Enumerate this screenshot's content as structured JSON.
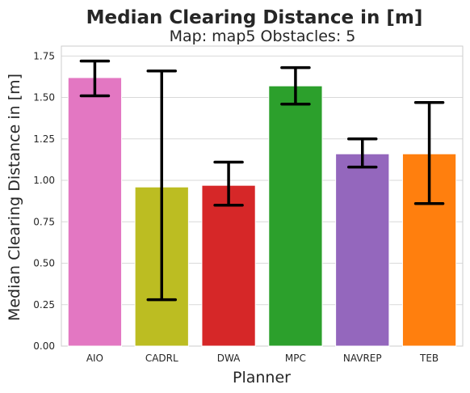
{
  "chart_data": {
    "type": "bar",
    "title": "Median Clearing Distance in [m]",
    "subtitle": "Map: map5 Obstacles: 5",
    "xlabel": "Planner",
    "ylabel": "Median Clearing Distance in [m]",
    "categories": [
      "AIO",
      "CADRL",
      "DWA",
      "MPC",
      "NAVREP",
      "TEB"
    ],
    "values": [
      1.62,
      0.96,
      0.97,
      1.57,
      1.16,
      1.16
    ],
    "error_low": [
      1.51,
      0.28,
      0.85,
      1.46,
      1.08,
      0.86
    ],
    "error_high": [
      1.72,
      1.66,
      1.11,
      1.68,
      1.25,
      1.47
    ],
    "colors": [
      "#e377c2",
      "#bcbd22",
      "#d62728",
      "#2ca02c",
      "#9467bd",
      "#ff7f0e"
    ],
    "ylim": [
      0,
      1.81
    ],
    "yticks": [
      "0.00",
      "0.25",
      "0.50",
      "0.75",
      "1.00",
      "1.25",
      "1.50",
      "1.75"
    ],
    "grid": true,
    "legend": "none"
  }
}
